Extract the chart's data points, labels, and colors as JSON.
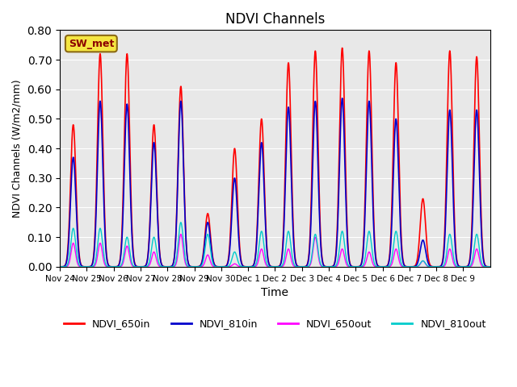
{
  "title": "NDVI Channels",
  "xlabel": "Time",
  "ylabel": "NDVI Channels (W/m2/mm)",
  "ylim": [
    0.0,
    0.8
  ],
  "yticks": [
    0.0,
    0.1,
    0.2,
    0.3,
    0.4,
    0.5,
    0.6,
    0.7,
    0.8
  ],
  "background_color": "#e8e8e8",
  "annotation_text": "SW_met",
  "annotation_color": "#8B0000",
  "annotation_bg": "#f5e642",
  "lines": {
    "NDVI_650in": {
      "color": "#ff0000",
      "lw": 1.2
    },
    "NDVI_810in": {
      "color": "#0000cc",
      "lw": 1.2
    },
    "NDVI_650out": {
      "color": "#ff00ff",
      "lw": 1.0
    },
    "NDVI_810out": {
      "color": "#00cccc",
      "lw": 1.0
    }
  },
  "xtick_labels": [
    "Nov 24",
    "Nov 25",
    "Nov 26",
    "Nov 27",
    "Nov 28",
    "Nov 29",
    "Nov 30",
    "Dec 1",
    "Dec 2",
    "Dec 3",
    "Dec 4",
    "Dec 5",
    "Dec 6",
    "Dec 7",
    "Dec 8",
    "Dec 9"
  ],
  "n_days": 16,
  "day_peaks_650in": [
    0.48,
    0.72,
    0.72,
    0.48,
    0.61,
    0.18,
    0.4,
    0.5,
    0.69,
    0.73,
    0.74,
    0.73,
    0.69,
    0.23,
    0.73,
    0.71
  ],
  "day_peaks_810in": [
    0.37,
    0.56,
    0.55,
    0.42,
    0.56,
    0.15,
    0.3,
    0.42,
    0.54,
    0.56,
    0.57,
    0.56,
    0.5,
    0.09,
    0.53,
    0.53
  ],
  "day_peaks_650out": [
    0.08,
    0.08,
    0.07,
    0.05,
    0.11,
    0.04,
    0.01,
    0.06,
    0.06,
    0.1,
    0.06,
    0.05,
    0.06,
    0.02,
    0.06,
    0.06
  ],
  "day_peaks_810out": [
    0.13,
    0.13,
    0.1,
    0.1,
    0.15,
    0.11,
    0.05,
    0.12,
    0.12,
    0.11,
    0.12,
    0.12,
    0.12,
    0.02,
    0.11,
    0.11
  ]
}
